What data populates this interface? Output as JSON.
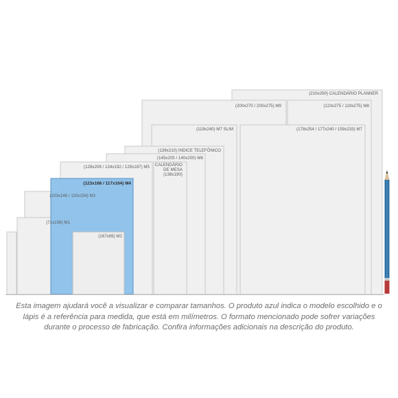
{
  "labels": {
    "calendario_planner": "(210x290) CALENDÁRIO PLANNER",
    "m9": "(200x270 / 200x275) M9",
    "m8": "(123x275 / 119x275) M8",
    "m7_slim": "(119x240) M7 SLIM",
    "m7": "(178x254 / 177x240 / 159x233) M7",
    "indice_telefonico": "(139x210) INDICE TELEFÔNICO",
    "m6": "(145x205 / 140x200) M6",
    "m5": "(128x208 / 134x192 / 129x187) M5",
    "calendario_mesa_line1": "CALENDÁRIO",
    "calendario_mesa_line2": "DE MESA",
    "calendario_mesa_line3": "(138x190)",
    "m4": "(123x166 / 117x164) M4",
    "m3": "(103x146 / 110x154) M3",
    "m1": "(71x108) M1",
    "m2": "(167x89) M2"
  },
  "caption": "Esta imagem ajudará você a visualizar e comparar tamanhos. O produto azul indica o modelo escolhido e o lápis é a referência para medida, que está em milímetros. O formato mencionado pode sofrer variações durante o processo de fabricação. Confira informações adicionais na descrição do produto.",
  "colors": {
    "selected_fill": "#8ec1ea",
    "selected_stroke": "#4f8fc7",
    "page_fill": "#f0f0f0",
    "pencil_body": "#2f6fa3",
    "pencil_eraser": "#b83a3a"
  },
  "icons": {
    "pencil": "pencil-icon"
  }
}
